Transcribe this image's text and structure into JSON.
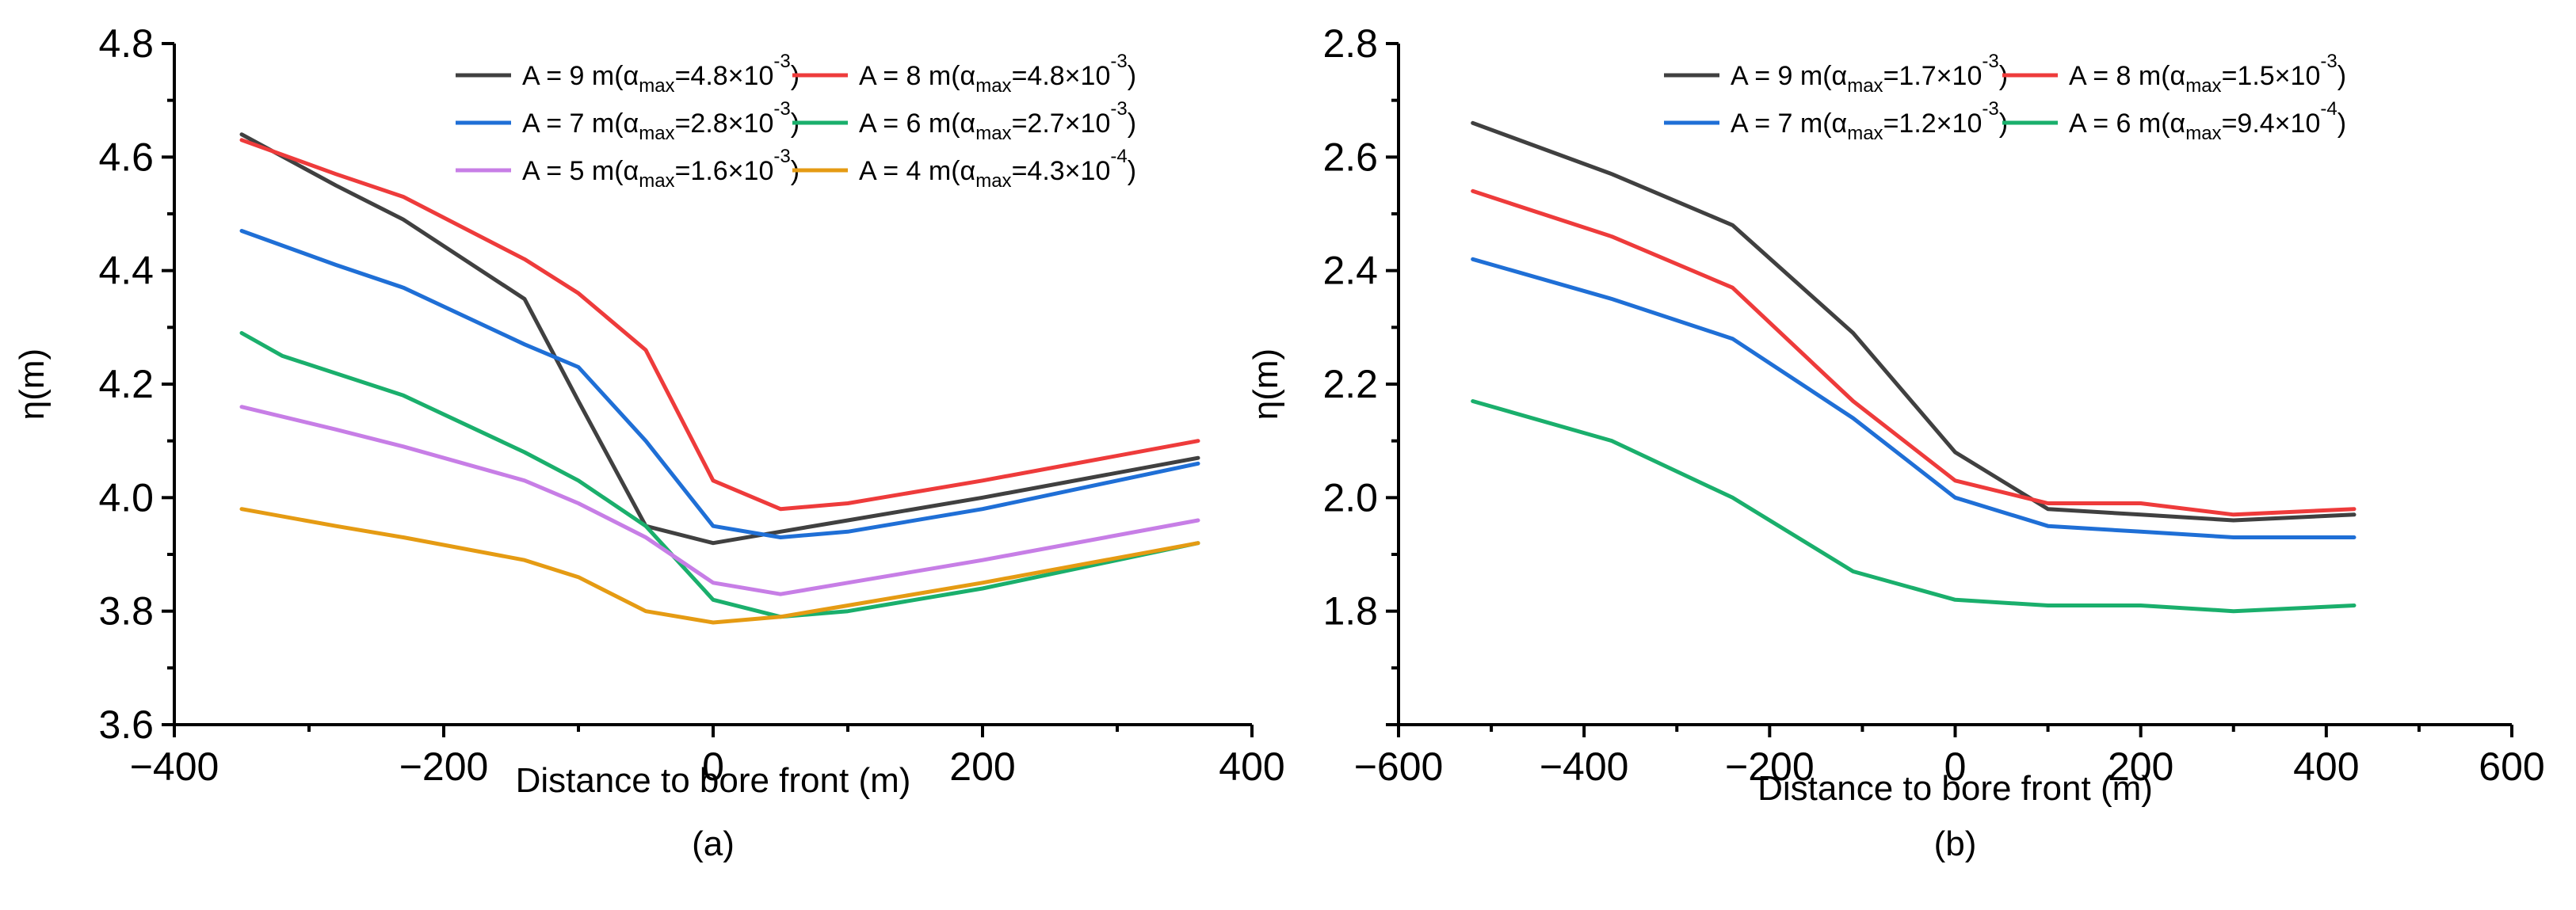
{
  "chart_data": [
    {
      "type": "line",
      "panel_label": "(a)",
      "xlabel": "Distance to bore front (m)",
      "ylabel": "η(m)",
      "xlim": [
        -400,
        400
      ],
      "ylim": [
        3.6,
        4.8
      ],
      "xticks": [
        -400,
        -200,
        0,
        200,
        400
      ],
      "yticks": [
        3.6,
        3.8,
        4.0,
        4.2,
        4.4,
        4.6,
        4.8
      ],
      "xtick_labels": [
        "−400",
        "−200",
        "0",
        "200",
        "400"
      ],
      "ytick_labels": [
        "3.6",
        "3.8",
        "4.0",
        "4.2",
        "4.4",
        "4.6",
        "4.8"
      ],
      "grid": false,
      "legend_position": "top-right",
      "series": [
        {
          "name": "A = 9 m",
          "prefix": "A = 9 m(α",
          "sub": "max",
          "mid": "=4.8×10",
          "sup": "-3",
          "suffix": ")",
          "color": "#404040",
          "x": [
            -350,
            -280,
            -230,
            -140,
            -100,
            -50,
            0,
            50,
            100,
            200,
            360
          ],
          "y": [
            4.64,
            4.55,
            4.49,
            4.35,
            4.17,
            3.95,
            3.92,
            3.94,
            3.96,
            4.0,
            4.07
          ]
        },
        {
          "name": "A = 8 m",
          "prefix": "A = 8 m(α",
          "sub": "max",
          "mid": "=4.8×10",
          "sup": "-3",
          "suffix": ")",
          "color": "#ee3b3b",
          "x": [
            -350,
            -280,
            -230,
            -140,
            -100,
            -50,
            0,
            50,
            100,
            200,
            360
          ],
          "y": [
            4.63,
            4.57,
            4.53,
            4.42,
            4.36,
            4.26,
            4.03,
            3.98,
            3.99,
            4.03,
            4.1
          ]
        },
        {
          "name": "A = 7 m",
          "prefix": "A = 7 m(α",
          "sub": "max",
          "mid": "=2.8×10",
          "sup": "-3",
          "suffix": ")",
          "color": "#1f6fd6",
          "x": [
            -350,
            -280,
            -230,
            -140,
            -100,
            -50,
            0,
            50,
            100,
            200,
            360
          ],
          "y": [
            4.47,
            4.41,
            4.37,
            4.27,
            4.23,
            4.1,
            3.95,
            3.93,
            3.94,
            3.98,
            4.06
          ]
        },
        {
          "name": "A = 6 m",
          "prefix": "A = 6 m(α",
          "sub": "max",
          "mid": "=2.7×10",
          "sup": "-3",
          "suffix": ")",
          "color": "#1aaf6c",
          "x": [
            -350,
            -320,
            -230,
            -140,
            -100,
            -50,
            0,
            50,
            100,
            200,
            360
          ],
          "y": [
            4.29,
            4.25,
            4.18,
            4.08,
            4.03,
            3.95,
            3.82,
            3.79,
            3.8,
            3.84,
            3.92
          ]
        },
        {
          "name": "A = 5 m",
          "prefix": "A = 5 m(α",
          "sub": "max",
          "mid": "=1.6×10",
          "sup": "-3",
          "suffix": ")",
          "color": "#c77ee6",
          "x": [
            -350,
            -280,
            -230,
            -140,
            -100,
            -50,
            0,
            50,
            100,
            200,
            360
          ],
          "y": [
            4.16,
            4.12,
            4.09,
            4.03,
            3.99,
            3.93,
            3.85,
            3.83,
            3.85,
            3.89,
            3.96
          ]
        },
        {
          "name": "A = 4 m",
          "prefix": "A = 4 m(α",
          "sub": "max",
          "mid": "=4.3×10",
          "sup": "-4",
          "suffix": ")",
          "color": "#e59b13",
          "x": [
            -350,
            -280,
            -230,
            -140,
            -100,
            -50,
            0,
            50,
            100,
            200,
            360
          ],
          "y": [
            3.98,
            3.95,
            3.93,
            3.89,
            3.86,
            3.8,
            3.78,
            3.79,
            3.81,
            3.85,
            3.92
          ]
        }
      ]
    },
    {
      "type": "line",
      "panel_label": "(b)",
      "xlabel": "Distance to bore front (m)",
      "ylabel": "η(m)",
      "xlim": [
        -600,
        600
      ],
      "ylim": [
        1.6,
        2.8
      ],
      "xticks": [
        -600,
        -400,
        -200,
        0,
        200,
        400,
        600
      ],
      "yticks": [
        1.6,
        1.8,
        2.0,
        2.2,
        2.4,
        2.6,
        2.8
      ],
      "xtick_labels": [
        "−600",
        "−400",
        "−200",
        "0",
        "200",
        "400",
        "600"
      ],
      "ytick_labels": [
        "",
        "1.8",
        "2.0",
        "2.2",
        "2.4",
        "2.6",
        "2.8"
      ],
      "grid": false,
      "legend_position": "top-right",
      "series": [
        {
          "name": "A = 9 m",
          "prefix": "A = 9 m(α",
          "sub": "max",
          "mid": "=1.7×10",
          "sup": "-3",
          "suffix": ")",
          "color": "#404040",
          "x": [
            -520,
            -370,
            -240,
            -110,
            0,
            100,
            200,
            300,
            430
          ],
          "y": [
            2.66,
            2.57,
            2.48,
            2.29,
            2.08,
            1.98,
            1.97,
            1.96,
            1.97
          ]
        },
        {
          "name": "A = 8 m",
          "prefix": "A = 8 m(α",
          "sub": "max",
          "mid": "=1.5×10",
          "sup": "-3",
          "suffix": ")",
          "color": "#ee3b3b",
          "x": [
            -520,
            -370,
            -240,
            -110,
            0,
            100,
            200,
            300,
            430
          ],
          "y": [
            2.54,
            2.46,
            2.37,
            2.17,
            2.03,
            1.99,
            1.99,
            1.97,
            1.98
          ]
        },
        {
          "name": "A = 7 m",
          "prefix": "A = 7 m(α",
          "sub": "max",
          "mid": "=1.2×10",
          "sup": "-3",
          "suffix": ")",
          "color": "#1f6fd6",
          "x": [
            -520,
            -370,
            -240,
            -110,
            0,
            100,
            200,
            300,
            430
          ],
          "y": [
            2.42,
            2.35,
            2.28,
            2.14,
            2.0,
            1.95,
            1.94,
            1.93,
            1.93
          ]
        },
        {
          "name": "A = 6 m",
          "prefix": "A = 6 m(α",
          "sub": "max",
          "mid": "=9.4×10",
          "sup": "-4",
          "suffix": ")",
          "color": "#1aaf6c",
          "x": [
            -520,
            -370,
            -240,
            -110,
            0,
            100,
            200,
            300,
            430
          ],
          "y": [
            2.17,
            2.1,
            2.0,
            1.87,
            1.82,
            1.81,
            1.81,
            1.8,
            1.81
          ]
        }
      ]
    }
  ]
}
